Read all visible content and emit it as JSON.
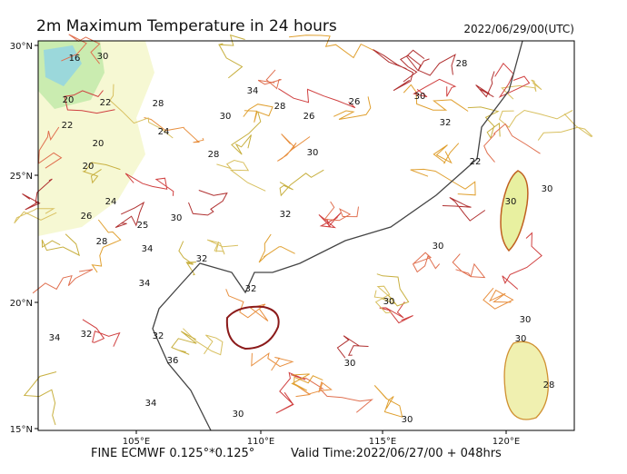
{
  "header": {
    "title": "2m Maximum Temperature in 24 hours",
    "date": "2022/06/29/00(UTC)"
  },
  "axes": {
    "y_ticks": [
      "30°N",
      "25°N",
      "20°N",
      "15°N"
    ],
    "x_ticks": [
      "105°E",
      "110°E",
      "115°E",
      "120°E"
    ]
  },
  "contour_labels": [
    "16",
    "30",
    "20",
    "22",
    "20",
    "22",
    "20",
    "24",
    "28",
    "34",
    "30",
    "28",
    "26",
    "26",
    "28",
    "30",
    "32",
    "28",
    "30",
    "22",
    "30",
    "30",
    "24",
    "26",
    "30",
    "32",
    "25",
    "28",
    "34",
    "32",
    "34",
    "30",
    "30",
    "32",
    "34",
    "32",
    "32",
    "36",
    "34",
    "30",
    "30",
    "30",
    "28",
    "30",
    "30"
  ],
  "footer": {
    "source": "FINE ECMWF 0.125°*0.125°",
    "valid": "Valid Time:2022/06/27/00 + 048hrs"
  }
}
